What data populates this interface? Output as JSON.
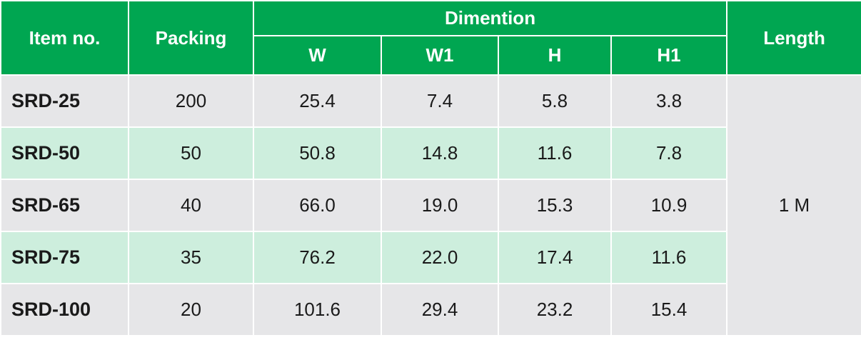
{
  "headers": {
    "item_no": "Item no.",
    "packing": "Packing",
    "dimention": "Dimention",
    "w": "W",
    "w1": "W1",
    "h": "H",
    "h1": "H1",
    "length": "Length"
  },
  "length_value": "1 M",
  "rows": [
    {
      "item": "SRD-25",
      "packing": "200",
      "w": "25.4",
      "w1": "7.4",
      "h": "5.8",
      "h1": "3.8"
    },
    {
      "item": "SRD-50",
      "packing": "50",
      "w": "50.8",
      "w1": "14.8",
      "h": "11.6",
      "h1": "7.8"
    },
    {
      "item": "SRD-65",
      "packing": "40",
      "w": "66.0",
      "w1": "19.0",
      "h": "15.3",
      "h1": "10.9"
    },
    {
      "item": "SRD-75",
      "packing": "35",
      "w": "76.2",
      "w1": "22.0",
      "h": "17.4",
      "h1": "11.6"
    },
    {
      "item": "SRD-100",
      "packing": "20",
      "w": "101.6",
      "w1": "29.4",
      "h": "23.2",
      "h1": "15.4"
    }
  ],
  "colors": {
    "header_green": "#00a651",
    "row_gray": "#e6e6e8",
    "row_mint": "#cdeedd",
    "header_text": "#ffffff"
  }
}
